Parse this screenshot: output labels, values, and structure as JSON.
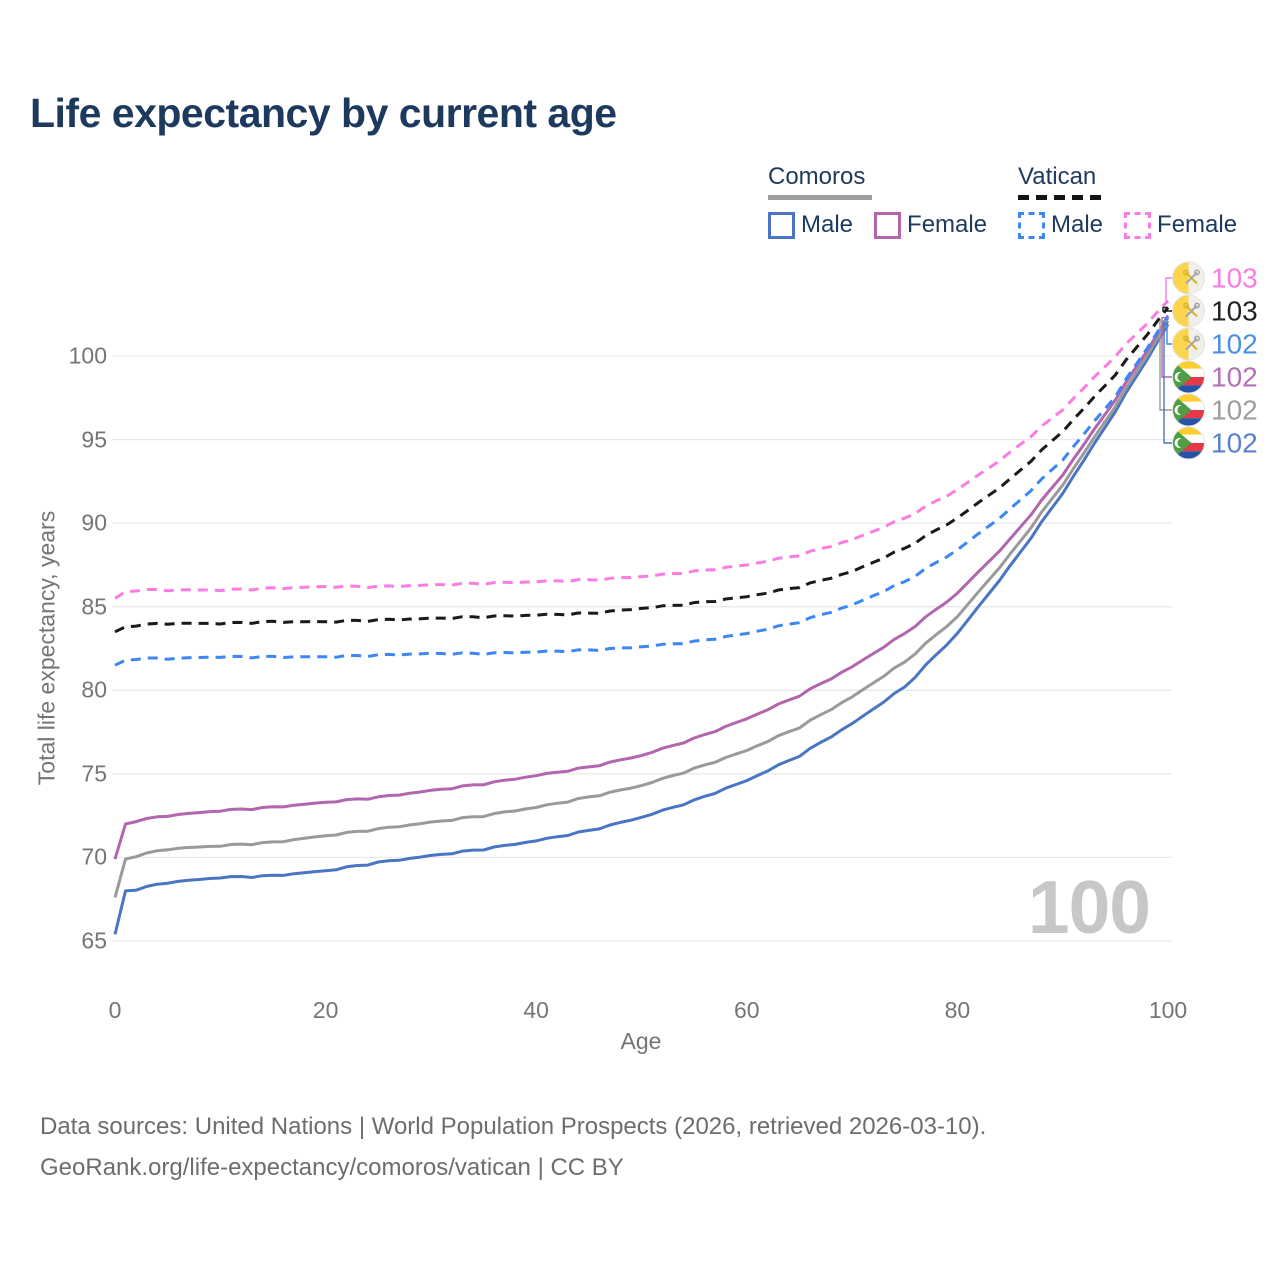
{
  "title": "Life expectancy by current age",
  "legend": {
    "comoros": {
      "name": "Comoros",
      "male_label": "Male",
      "female_label": "Female"
    },
    "vatican": {
      "name": "Vatican",
      "male_label": "Male",
      "female_label": "Female"
    }
  },
  "watermark": "100",
  "footer": {
    "line1": "Data sources: United Nations | World Population Prospects (2026, retrieved 2026-03-10).",
    "line2": "GeoRank.org/life-expectancy/comoros/vatican | CC BY"
  },
  "colors": {
    "title_navy": "#1d3a5e",
    "axis_text": "#757575",
    "gridline": "#e9e9e9",
    "footer_text": "#6d6d6d",
    "watermark": "#c7c7c7",
    "comoros_underline": "#9e9e9e",
    "vatican_underline": "#141414"
  },
  "chart_data": {
    "type": "line",
    "title": "Life expectancy by current age",
    "xlabel": "Age",
    "ylabel": "Total life expectancy, years",
    "xlim": [
      0,
      100
    ],
    "ylim": [
      65,
      100
    ],
    "x_ticks": [
      0,
      20,
      40,
      60,
      80,
      100
    ],
    "y_ticks": [
      65,
      70,
      75,
      80,
      85,
      90,
      95,
      100
    ],
    "grid": "horizontal",
    "legend_position": "top-right",
    "x": [
      0,
      1,
      2,
      5,
      10,
      15,
      20,
      25,
      30,
      35,
      40,
      45,
      50,
      55,
      60,
      65,
      70,
      75,
      80,
      85,
      90,
      95,
      100
    ],
    "series": [
      {
        "key": "comoros_male",
        "name": "Comoros Male",
        "country": "Comoros",
        "sex": "Male",
        "color": "#4a74c4",
        "label_color": "#5b82c8",
        "dashed": false,
        "end_label": "102",
        "flag": "comoros",
        "values": [
          65.4,
          68.0,
          68.1,
          68.5,
          68.8,
          68.9,
          69.2,
          69.7,
          70.1,
          70.5,
          71.0,
          71.6,
          72.4,
          73.4,
          74.6,
          76.1,
          78.0,
          80.2,
          83.4,
          87.4,
          91.8,
          96.7,
          101.9
        ]
      },
      {
        "key": "comoros_both",
        "name": "Comoros Both sexes",
        "country": "Comoros",
        "sex": "Both",
        "color": "#9a9a9a",
        "label_color": "#9e9e9e",
        "dashed": false,
        "end_label": "102",
        "flag": "comoros",
        "values": [
          67.6,
          69.9,
          70.1,
          70.5,
          70.7,
          70.9,
          71.3,
          71.7,
          72.1,
          72.5,
          73.0,
          73.6,
          74.3,
          75.3,
          76.4,
          77.8,
          79.6,
          81.7,
          84.4,
          88.1,
          92.3,
          97.0,
          102.1
        ]
      },
      {
        "key": "comoros_female",
        "name": "Comoros Female",
        "country": "Comoros",
        "sex": "Female",
        "color": "#b266ae",
        "label_color": "#b470b8",
        "dashed": false,
        "end_label": "102",
        "flag": "comoros",
        "values": [
          69.9,
          72.0,
          72.2,
          72.5,
          72.8,
          73.0,
          73.3,
          73.6,
          74.0,
          74.4,
          74.9,
          75.4,
          76.1,
          77.1,
          78.3,
          79.7,
          81.4,
          83.4,
          85.8,
          89.0,
          92.9,
          97.4,
          102.3
        ]
      },
      {
        "key": "vatican_male",
        "name": "Vatican Male",
        "country": "Vatican",
        "sex": "Male",
        "color": "#3c87f5",
        "label_color": "#4a90e2",
        "dashed": true,
        "end_label": "102",
        "flag": "vatican",
        "values": [
          81.5,
          81.8,
          81.9,
          81.9,
          82.0,
          82.0,
          82.0,
          82.1,
          82.2,
          82.2,
          82.3,
          82.4,
          82.6,
          82.9,
          83.4,
          84.1,
          85.1,
          86.5,
          88.4,
          90.8,
          93.8,
          97.6,
          102.4
        ]
      },
      {
        "key": "vatican_both",
        "name": "Vatican Both sexes",
        "country": "Vatican",
        "sex": "Both",
        "color": "#1a1a1a",
        "label_color": "#222222",
        "dashed": true,
        "end_label": "103",
        "flag": "vatican",
        "values": [
          83.5,
          83.8,
          83.9,
          84.0,
          84.0,
          84.1,
          84.1,
          84.2,
          84.3,
          84.4,
          84.5,
          84.6,
          84.9,
          85.2,
          85.6,
          86.2,
          87.1,
          88.5,
          90.3,
          92.6,
          95.5,
          98.9,
          102.9
        ]
      },
      {
        "key": "vatican_female",
        "name": "Vatican Female",
        "country": "Vatican",
        "sex": "Female",
        "color": "#fb7ce4",
        "label_color": "#fb7ce4",
        "dashed": true,
        "end_label": "103",
        "flag": "vatican",
        "values": [
          85.5,
          85.9,
          86.0,
          86.0,
          86.0,
          86.1,
          86.2,
          86.2,
          86.3,
          86.4,
          86.5,
          86.6,
          86.8,
          87.1,
          87.5,
          88.1,
          89.0,
          90.3,
          92.0,
          94.2,
          96.8,
          100.0,
          103.3
        ]
      }
    ],
    "end_labels": [
      {
        "series": "vatican_female",
        "text": "103",
        "flag": "vatican"
      },
      {
        "series": "vatican_both",
        "text": "103",
        "flag": "vatican"
      },
      {
        "series": "vatican_male",
        "text": "102",
        "flag": "vatican"
      },
      {
        "series": "comoros_female",
        "text": "102",
        "flag": "comoros"
      },
      {
        "series": "comoros_both",
        "text": "102",
        "flag": "comoros"
      },
      {
        "series": "comoros_male",
        "text": "102",
        "flag": "comoros"
      }
    ]
  }
}
